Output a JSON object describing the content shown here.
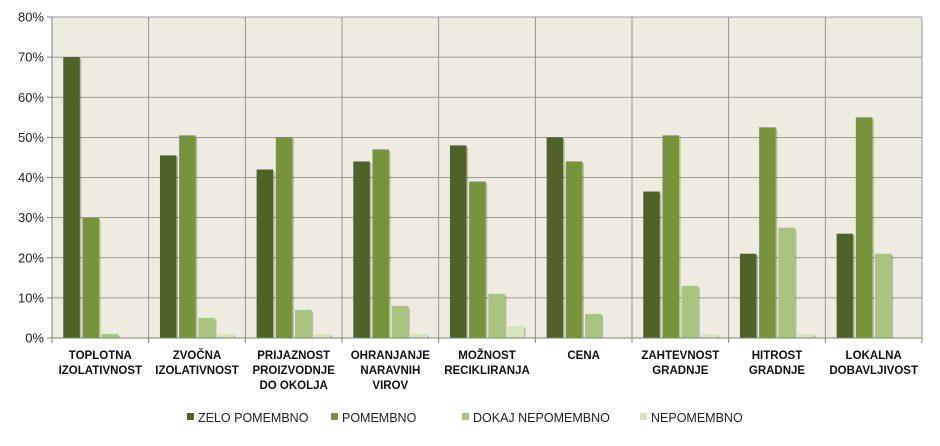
{
  "chart_data": {
    "type": "bar",
    "title": "",
    "xlabel": "",
    "ylabel": "",
    "ylim": [
      0,
      80
    ],
    "y_ticks": [
      "0%",
      "10%",
      "20%",
      "30%",
      "40%",
      "50%",
      "60%",
      "70%",
      "80%"
    ],
    "categories": [
      [
        "TOPLOTNA",
        "IZOLATIVNOST"
      ],
      [
        "ZVOČNA",
        "IZOLATIVNOST"
      ],
      [
        "PRIJAZNOST",
        "PROIZVODNJE",
        "DO OKOLJA"
      ],
      [
        "OHRANJANJE",
        "NARAVNIH",
        "VIROV"
      ],
      [
        "MOŽNOST",
        "RECIKLIRANJA"
      ],
      [
        "CENA"
      ],
      [
        "ZAHTEVNOST",
        "GRADNJE"
      ],
      [
        "HITROST",
        "GRADNJE"
      ],
      [
        "LOKALNA",
        "DOBAVLJIVOST"
      ]
    ],
    "series": [
      {
        "name": "ZELO POMEMBNO",
        "color": "#4f6228",
        "values": [
          70,
          45.5,
          42,
          44,
          48,
          50,
          36.5,
          21,
          26
        ]
      },
      {
        "name": "POMEMBNO",
        "color": "#77933c",
        "values": [
          30,
          50.5,
          50,
          47,
          39,
          44,
          50.5,
          52.5,
          55
        ]
      },
      {
        "name": "DOKAJ NEPOMEMBNO",
        "color": "#a9c47f",
        "values": [
          1,
          5,
          7,
          8,
          11,
          6,
          13,
          27.5,
          21
        ]
      },
      {
        "name": "NEPOMEMBNO",
        "color": "#d7e4bd",
        "values": [
          0,
          1,
          1,
          1,
          3,
          0,
          1,
          1,
          0
        ]
      }
    ],
    "legend_position": "bottom",
    "grid": true
  },
  "colors": {
    "plot_background": "#eeece1",
    "grid_line": "#7f7f7f",
    "axis_line": "#7f7f7f"
  }
}
